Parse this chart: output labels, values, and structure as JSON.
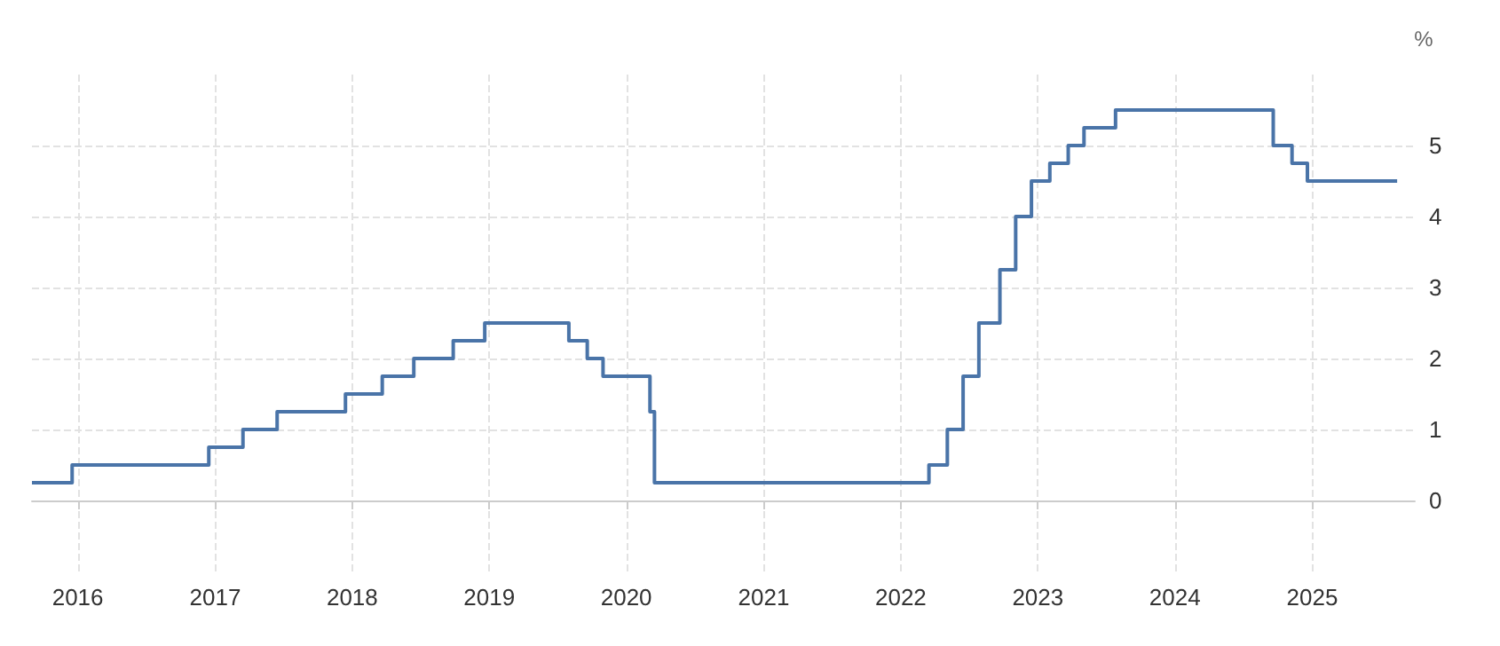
{
  "chart_data": {
    "type": "step",
    "ylabel": "%",
    "x": [
      "2015-09-01",
      "2015-12-17",
      "2016-12-15",
      "2017-03-16",
      "2017-06-15",
      "2017-12-14",
      "2018-03-22",
      "2018-06-14",
      "2018-09-27",
      "2018-12-20",
      "2019-08-01",
      "2019-09-19",
      "2019-10-31",
      "2020-03-04",
      "2020-03-16",
      "2022-03-17",
      "2022-05-05",
      "2022-06-16",
      "2022-07-28",
      "2022-09-22",
      "2022-11-03",
      "2022-12-15",
      "2023-02-02",
      "2023-03-23",
      "2023-05-04",
      "2023-07-27",
      "2024-09-19",
      "2024-11-08",
      "2024-12-19",
      "2025-08-15"
    ],
    "series": [
      {
        "color": "#4a74a8",
        "values": [
          0.25,
          0.5,
          0.75,
          1.0,
          1.25,
          1.5,
          1.75,
          2.0,
          2.25,
          2.5,
          2.25,
          2.0,
          1.75,
          1.25,
          0.25,
          0.5,
          1.0,
          1.75,
          2.5,
          3.25,
          4.0,
          4.5,
          4.75,
          5.0,
          5.25,
          5.5,
          5.0,
          4.75,
          4.5,
          4.5
        ]
      }
    ],
    "xlim": [
      "2015-09-01",
      "2025-10-01"
    ],
    "xticks": [
      "2016",
      "2017",
      "2018",
      "2019",
      "2020",
      "2021",
      "2022",
      "2023",
      "2024",
      "2025"
    ],
    "ylim": [
      -1,
      6
    ],
    "yticks": [
      0,
      1,
      2,
      3,
      4,
      5
    ],
    "grid": true,
    "marker": "none",
    "line_style": "solid"
  }
}
